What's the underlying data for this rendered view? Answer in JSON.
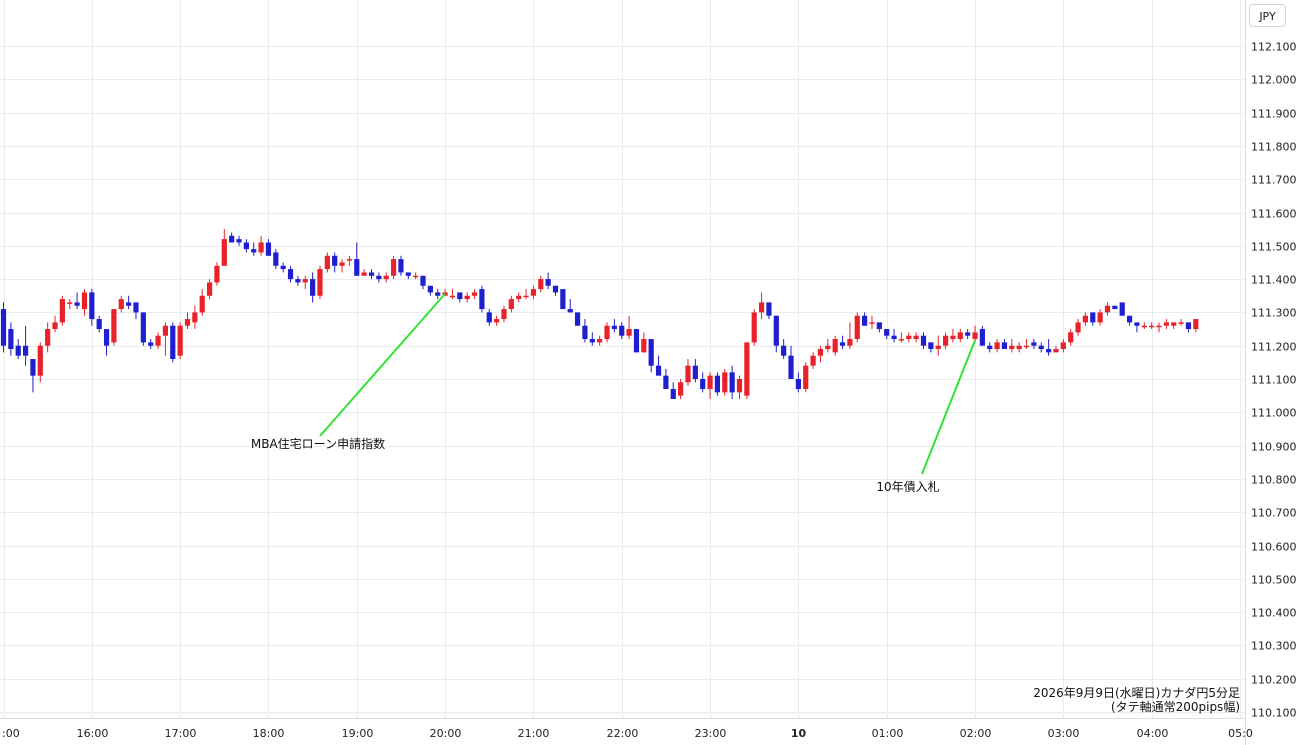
{
  "chart_data": {
    "type": "candlestick",
    "currency": "JPY",
    "y_ticks": [
      "112.100",
      "112.000",
      "111.900",
      "111.800",
      "111.700",
      "111.600",
      "111.500",
      "111.400",
      "111.300",
      "111.200",
      "111.100",
      "111.000",
      "110.900",
      "110.800",
      "110.700",
      "110.600",
      "110.500",
      "110.400",
      "110.300",
      "110.200",
      "110.100"
    ],
    "ylim": [
      110.1,
      112.1
    ],
    "x_ticks": [
      {
        "label": ":00",
        "bar": 0
      },
      {
        "label": "16:00",
        "bar": 12
      },
      {
        "label": "17:00",
        "bar": 24
      },
      {
        "label": "18:00",
        "bar": 36
      },
      {
        "label": "19:00",
        "bar": 48
      },
      {
        "label": "20:00",
        "bar": 60
      },
      {
        "label": "21:00",
        "bar": 72
      },
      {
        "label": "22:00",
        "bar": 84
      },
      {
        "label": "23:00",
        "bar": 96
      },
      {
        "label": "10",
        "bar": 108,
        "bold": true
      },
      {
        "label": "01:00",
        "bar": 120
      },
      {
        "label": "02:00",
        "bar": 132
      },
      {
        "label": "03:00",
        "bar": 144
      },
      {
        "label": "04:00",
        "bar": 156
      },
      {
        "label": "05:0",
        "bar": 168
      }
    ],
    "colors": {
      "up": "#e8222a",
      "down": "#1f1fd0"
    },
    "candles": [
      [
        111.31,
        111.33,
        111.18,
        111.2
      ],
      [
        111.25,
        111.27,
        111.17,
        111.19
      ],
      [
        111.2,
        111.22,
        111.16,
        111.17
      ],
      [
        111.2,
        111.26,
        111.14,
        111.17
      ],
      [
        111.16,
        111.16,
        111.06,
        111.11
      ],
      [
        111.11,
        111.21,
        111.09,
        111.2
      ],
      [
        111.2,
        111.27,
        111.18,
        111.25
      ],
      [
        111.25,
        111.29,
        111.24,
        111.27
      ],
      [
        111.27,
        111.35,
        111.26,
        111.34
      ],
      [
        111.33,
        111.34,
        111.31,
        111.33
      ],
      [
        111.33,
        111.36,
        111.31,
        111.32
      ],
      [
        111.31,
        111.37,
        111.29,
        111.36
      ],
      [
        111.36,
        111.37,
        111.26,
        111.28
      ],
      [
        111.28,
        111.29,
        111.24,
        111.25
      ],
      [
        111.25,
        111.25,
        111.17,
        111.2
      ],
      [
        111.21,
        111.31,
        111.2,
        111.31
      ],
      [
        111.31,
        111.35,
        111.3,
        111.34
      ],
      [
        111.33,
        111.35,
        111.31,
        111.32
      ],
      [
        111.33,
        111.33,
        111.28,
        111.3
      ],
      [
        111.3,
        111.3,
        111.2,
        111.21
      ],
      [
        111.21,
        111.22,
        111.19,
        111.2
      ],
      [
        111.2,
        111.24,
        111.19,
        111.23
      ],
      [
        111.23,
        111.27,
        111.17,
        111.26
      ],
      [
        111.26,
        111.27,
        111.15,
        111.16
      ],
      [
        111.17,
        111.27,
        111.16,
        111.26
      ],
      [
        111.26,
        111.3,
        111.25,
        111.28
      ],
      [
        111.27,
        111.32,
        111.25,
        111.3
      ],
      [
        111.3,
        111.37,
        111.29,
        111.35
      ],
      [
        111.35,
        111.4,
        111.34,
        111.39
      ],
      [
        111.39,
        111.45,
        111.38,
        111.44
      ],
      [
        111.44,
        111.55,
        111.44,
        111.52
      ],
      [
        111.53,
        111.54,
        111.51,
        111.51
      ],
      [
        111.52,
        111.53,
        111.5,
        111.51
      ],
      [
        111.51,
        111.52,
        111.48,
        111.49
      ],
      [
        111.49,
        111.51,
        111.47,
        111.48
      ],
      [
        111.48,
        111.53,
        111.47,
        111.51
      ],
      [
        111.51,
        111.52,
        111.47,
        111.47
      ],
      [
        111.48,
        111.49,
        111.43,
        111.44
      ],
      [
        111.44,
        111.45,
        111.42,
        111.43
      ],
      [
        111.43,
        111.44,
        111.39,
        111.4
      ],
      [
        111.4,
        111.41,
        111.38,
        111.39
      ],
      [
        111.39,
        111.41,
        111.37,
        111.4
      ],
      [
        111.4,
        111.42,
        111.33,
        111.35
      ],
      [
        111.35,
        111.44,
        111.34,
        111.43
      ],
      [
        111.43,
        111.48,
        111.42,
        111.47
      ],
      [
        111.47,
        111.48,
        111.42,
        111.44
      ],
      [
        111.44,
        111.46,
        111.42,
        111.45
      ],
      [
        111.46,
        111.47,
        111.44,
        111.46
      ],
      [
        111.46,
        111.51,
        111.41,
        111.41
      ],
      [
        111.41,
        111.43,
        111.41,
        111.42
      ],
      [
        111.42,
        111.43,
        111.4,
        111.41
      ],
      [
        111.41,
        111.42,
        111.39,
        111.4
      ],
      [
        111.4,
        111.42,
        111.39,
        111.41
      ],
      [
        111.41,
        111.47,
        111.4,
        111.46
      ],
      [
        111.46,
        111.47,
        111.41,
        111.42
      ],
      [
        111.42,
        111.42,
        111.4,
        111.41
      ],
      [
        111.41,
        111.42,
        111.4,
        111.41
      ],
      [
        111.41,
        111.41,
        111.37,
        111.38
      ],
      [
        111.38,
        111.38,
        111.35,
        111.36
      ],
      [
        111.36,
        111.37,
        111.34,
        111.35
      ],
      [
        111.35,
        111.37,
        111.35,
        111.36
      ],
      [
        111.35,
        111.37,
        111.34,
        111.35
      ],
      [
        111.36,
        111.36,
        111.33,
        111.34
      ],
      [
        111.34,
        111.36,
        111.33,
        111.35
      ],
      [
        111.35,
        111.37,
        111.34,
        111.36
      ],
      [
        111.37,
        111.38,
        111.3,
        111.31
      ],
      [
        111.3,
        111.31,
        111.26,
        111.27
      ],
      [
        111.27,
        111.29,
        111.26,
        111.28
      ],
      [
        111.28,
        111.32,
        111.27,
        111.31
      ],
      [
        111.31,
        111.35,
        111.3,
        111.34
      ],
      [
        111.34,
        111.36,
        111.33,
        111.35
      ],
      [
        111.35,
        111.37,
        111.34,
        111.35
      ],
      [
        111.35,
        111.38,
        111.34,
        111.37
      ],
      [
        111.37,
        111.41,
        111.36,
        111.4
      ],
      [
        111.4,
        111.42,
        111.37,
        111.38
      ],
      [
        111.38,
        111.38,
        111.35,
        111.36
      ],
      [
        111.37,
        111.37,
        111.31,
        111.31
      ],
      [
        111.31,
        111.34,
        111.3,
        111.3
      ],
      [
        111.3,
        111.3,
        111.26,
        111.26
      ],
      [
        111.26,
        111.28,
        111.21,
        111.22
      ],
      [
        111.22,
        111.24,
        111.2,
        111.21
      ],
      [
        111.21,
        111.23,
        111.2,
        111.22
      ],
      [
        111.22,
        111.27,
        111.21,
        111.26
      ],
      [
        111.26,
        111.28,
        111.24,
        111.25
      ],
      [
        111.26,
        111.27,
        111.22,
        111.23
      ],
      [
        111.23,
        111.29,
        111.22,
        111.25
      ],
      [
        111.25,
        111.25,
        111.18,
        111.18
      ],
      [
        111.18,
        111.24,
        111.18,
        111.22
      ],
      [
        111.22,
        111.22,
        111.12,
        111.14
      ],
      [
        111.14,
        111.17,
        111.11,
        111.11
      ],
      [
        111.11,
        111.13,
        111.07,
        111.07
      ],
      [
        111.07,
        111.09,
        111.04,
        111.04
      ],
      [
        111.05,
        111.1,
        111.04,
        111.09
      ],
      [
        111.09,
        111.16,
        111.08,
        111.14
      ],
      [
        111.14,
        111.16,
        111.09,
        111.1
      ],
      [
        111.1,
        111.12,
        111.06,
        111.07
      ],
      [
        111.07,
        111.12,
        111.04,
        111.11
      ],
      [
        111.11,
        111.12,
        111.05,
        111.06
      ],
      [
        111.06,
        111.13,
        111.05,
        111.12
      ],
      [
        111.12,
        111.14,
        111.04,
        111.06
      ],
      [
        111.06,
        111.11,
        111.04,
        111.1
      ],
      [
        111.05,
        111.21,
        111.04,
        111.21
      ],
      [
        111.21,
        111.31,
        111.2,
        111.3
      ],
      [
        111.3,
        111.36,
        111.28,
        111.33
      ],
      [
        111.33,
        111.33,
        111.28,
        111.29
      ],
      [
        111.29,
        111.29,
        111.18,
        111.2
      ],
      [
        111.2,
        111.22,
        111.16,
        111.17
      ],
      [
        111.17,
        111.2,
        111.1,
        111.1
      ],
      [
        111.1,
        111.12,
        111.06,
        111.07
      ],
      [
        111.07,
        111.15,
        111.06,
        111.14
      ],
      [
        111.14,
        111.18,
        111.13,
        111.17
      ],
      [
        111.17,
        111.2,
        111.15,
        111.19
      ],
      [
        111.19,
        111.22,
        111.18,
        111.2
      ],
      [
        111.18,
        111.23,
        111.17,
        111.22
      ],
      [
        111.21,
        111.23,
        111.19,
        111.2
      ],
      [
        111.2,
        111.27,
        111.19,
        111.22
      ],
      [
        111.22,
        111.3,
        111.21,
        111.29
      ],
      [
        111.29,
        111.3,
        111.26,
        111.26
      ],
      [
        111.27,
        111.29,
        111.25,
        111.27
      ],
      [
        111.27,
        111.27,
        111.24,
        111.25
      ],
      [
        111.25,
        111.25,
        111.22,
        111.23
      ],
      [
        111.23,
        111.25,
        111.21,
        111.22
      ],
      [
        111.22,
        111.24,
        111.21,
        111.22
      ],
      [
        111.22,
        111.24,
        111.21,
        111.23
      ],
      [
        111.22,
        111.24,
        111.21,
        111.23
      ],
      [
        111.23,
        111.24,
        111.19,
        111.2
      ],
      [
        111.21,
        111.21,
        111.18,
        111.19
      ],
      [
        111.19,
        111.23,
        111.17,
        111.2
      ],
      [
        111.2,
        111.24,
        111.19,
        111.23
      ],
      [
        111.22,
        111.25,
        111.21,
        111.23
      ],
      [
        111.22,
        111.25,
        111.21,
        111.24
      ],
      [
        111.24,
        111.25,
        111.22,
        111.23
      ],
      [
        111.22,
        111.26,
        111.21,
        111.24
      ],
      [
        111.25,
        111.26,
        111.2,
        111.2
      ],
      [
        111.2,
        111.21,
        111.18,
        111.19
      ],
      [
        111.19,
        111.22,
        111.18,
        111.21
      ],
      [
        111.21,
        111.22,
        111.19,
        111.19
      ],
      [
        111.19,
        111.22,
        111.18,
        111.2
      ],
      [
        111.19,
        111.21,
        111.18,
        111.2
      ],
      [
        111.2,
        111.22,
        111.19,
        111.2
      ],
      [
        111.21,
        111.22,
        111.19,
        111.2
      ],
      [
        111.2,
        111.21,
        111.18,
        111.19
      ],
      [
        111.19,
        111.22,
        111.17,
        111.18
      ],
      [
        111.18,
        111.2,
        111.18,
        111.19
      ],
      [
        111.19,
        111.22,
        111.18,
        111.21
      ],
      [
        111.21,
        111.25,
        111.2,
        111.24
      ],
      [
        111.24,
        111.28,
        111.23,
        111.27
      ],
      [
        111.27,
        111.3,
        111.26,
        111.29
      ],
      [
        111.3,
        111.3,
        111.26,
        111.27
      ],
      [
        111.27,
        111.31,
        111.26,
        111.3
      ],
      [
        111.3,
        111.33,
        111.29,
        111.32
      ],
      [
        111.32,
        111.32,
        111.31,
        111.31
      ],
      [
        111.33,
        111.33,
        111.29,
        111.29
      ],
      [
        111.29,
        111.29,
        111.26,
        111.27
      ],
      [
        111.27,
        111.27,
        111.24,
        111.26
      ],
      [
        111.26,
        111.27,
        111.25,
        111.26
      ],
      [
        111.26,
        111.27,
        111.25,
        111.26
      ],
      [
        111.26,
        111.27,
        111.24,
        111.26
      ],
      [
        111.26,
        111.28,
        111.25,
        111.27
      ],
      [
        111.26,
        111.27,
        111.25,
        111.27
      ],
      [
        111.27,
        111.28,
        111.26,
        111.27
      ],
      [
        111.27,
        111.27,
        111.24,
        111.25
      ],
      [
        111.25,
        111.28,
        111.24,
        111.28
      ]
    ],
    "annotations": [
      {
        "text": "MBA住宅ローン申請指数",
        "bar": 60
      },
      {
        "text": "10年債入札",
        "bar": 132
      }
    ],
    "caption": [
      "2026年9月9日(水曜日)カナダ円5分足",
      "(タテ軸通常200pips幅)"
    ]
  }
}
